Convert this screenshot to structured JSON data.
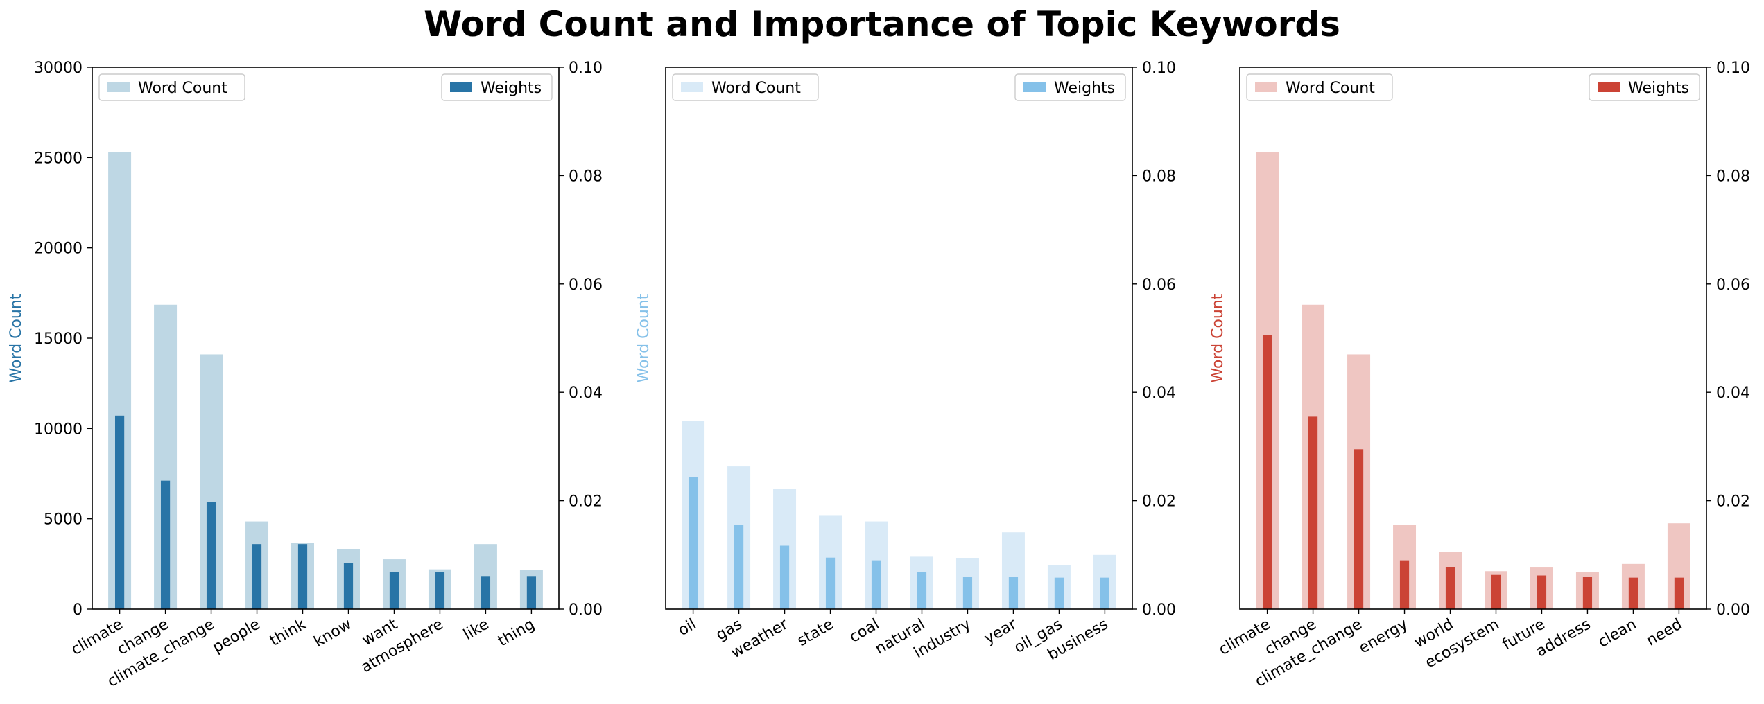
{
  "title": "Word Count and Importance of Topic Keywords",
  "chart_data": [
    {
      "type": "bar",
      "categories": [
        "climate",
        "change",
        "climate_change",
        "people",
        "think",
        "know",
        "want",
        "atmosphere",
        "like",
        "thing"
      ],
      "ylabel": "Word Count",
      "ylabel_color": "#2874a6",
      "ylim": [
        0,
        30000
      ],
      "yticks": [
        "0",
        "5000",
        "10000",
        "15000",
        "20000",
        "25000",
        "30000"
      ],
      "y2lim": [
        0,
        0.1
      ],
      "y2ticks": [
        "0.00",
        "0.02",
        "0.04",
        "0.06",
        "0.08",
        "0.10"
      ],
      "series": [
        {
          "name": "Word Count",
          "color": "#bed7e4",
          "axis": "left",
          "values": [
            25300,
            16850,
            14100,
            4850,
            3680,
            3300,
            2760,
            2200,
            3600,
            2180
          ]
        },
        {
          "name": "Weights",
          "color": "#2874a6",
          "axis": "right",
          "values": [
            0.0357,
            0.0237,
            0.0197,
            0.012,
            0.012,
            0.0085,
            0.0069,
            0.0069,
            0.0061,
            0.0061
          ]
        }
      ],
      "legend": [
        "top-left",
        "top-right"
      ],
      "grid": false
    },
    {
      "type": "bar",
      "categories": [
        "oil",
        "gas",
        "weather",
        "state",
        "coal",
        "natural",
        "industry",
        "year",
        "oil_gas",
        "business"
      ],
      "ylabel": "Word Count",
      "ylabel_color": "#85c1e9",
      "ylim": [
        0,
        30000
      ],
      "yticks": [],
      "y2lim": [
        0,
        0.1
      ],
      "y2ticks": [
        "0.00",
        "0.02",
        "0.04",
        "0.06",
        "0.08",
        "0.10"
      ],
      "series": [
        {
          "name": "Word Count",
          "color": "#d9eaf7",
          "axis": "left",
          "values": [
            10400,
            7900,
            6650,
            5200,
            4850,
            2900,
            2800,
            4250,
            2450,
            3000
          ]
        },
        {
          "name": "Weights",
          "color": "#85c1e9",
          "axis": "right",
          "values": [
            0.0243,
            0.0156,
            0.0117,
            0.0095,
            0.009,
            0.0069,
            0.006,
            0.006,
            0.0058,
            0.0058
          ]
        }
      ],
      "legend": [
        "top-left",
        "top-right"
      ],
      "grid": false
    },
    {
      "type": "bar",
      "categories": [
        "climate",
        "change",
        "climate_change",
        "energy",
        "world",
        "ecosystem",
        "future",
        "address",
        "clean",
        "need"
      ],
      "ylabel": "Word Count",
      "ylabel_color": "#cb4335",
      "ylim": [
        0,
        30000
      ],
      "yticks": [],
      "y2lim": [
        0,
        0.1
      ],
      "y2ticks": [
        "0.00",
        "0.02",
        "0.04",
        "0.06",
        "0.08",
        "0.10"
      ],
      "series": [
        {
          "name": "Word Count",
          "color": "#efc6c2",
          "axis": "left",
          "values": [
            25300,
            16850,
            14100,
            4650,
            3150,
            2100,
            2300,
            2050,
            2500,
            4750
          ]
        },
        {
          "name": "Weights",
          "color": "#cb4335",
          "axis": "right",
          "values": [
            0.0506,
            0.0355,
            0.0295,
            0.009,
            0.0078,
            0.0063,
            0.0062,
            0.006,
            0.0058,
            0.0058
          ]
        }
      ],
      "legend": [
        "top-left",
        "top-right"
      ],
      "grid": false
    }
  ]
}
